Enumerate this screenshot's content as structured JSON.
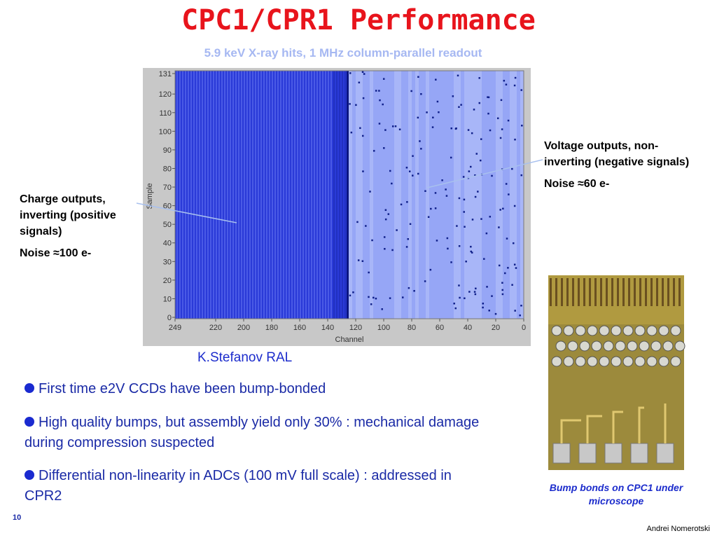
{
  "header": {
    "title": "CPC1/CPR1 Performance",
    "subtitle": "5.9 keV X-ray hits, 1 MHz column-parallel readout"
  },
  "plot": {
    "y_label": "Sample",
    "x_label": "Channel",
    "yticks": [
      0,
      10,
      20,
      30,
      40,
      50,
      60,
      70,
      80,
      90,
      100,
      110,
      120,
      131
    ],
    "xticks": [
      249,
      220,
      200,
      180,
      160,
      140,
      120,
      100,
      80,
      60,
      40,
      20,
      0
    ]
  },
  "left_note": {
    "lines": [
      "Charge outputs, inverting (positive signals)",
      "Noise ≈100 e-"
    ]
  },
  "right_note": {
    "lines": [
      "Voltage outputs, non-inverting (negative signals)",
      "Noise ≈60 e-"
    ]
  },
  "credit": "K.Stefanov RAL",
  "bullets": [
    "First time e2V CCDs have been bump-bonded",
    "High quality bumps, but assembly yield only 30% : mechanical damage during compression suspected",
    "Differential non-linearity in ADCs (100 mV full scale) : addressed in CPR2"
  ],
  "caption": "Bump bonds on CPC1 under microscope",
  "page_number": "10",
  "author": "Andrei Nomerotski"
}
